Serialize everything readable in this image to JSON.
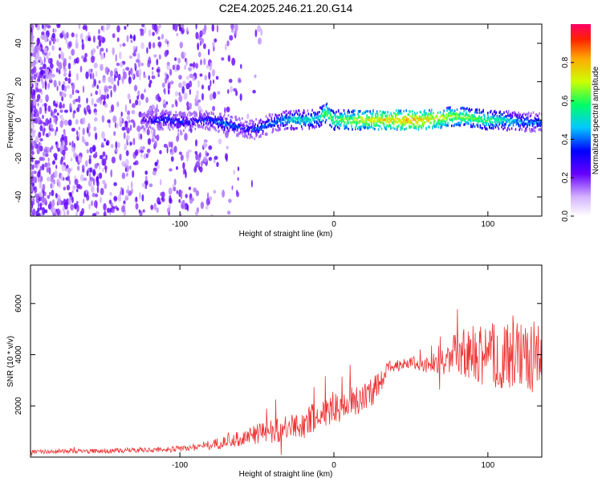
{
  "page_title": "C2E4.2025.246.21.20.G14",
  "colors": {
    "snr_line": "#ee3333",
    "frame": "#000000",
    "spec_dot": "#8a2be2",
    "background": "#ffffff"
  },
  "chart_data": [
    {
      "type": "heatmap",
      "title": "C2E4.2025.246.21.20.G14",
      "xlabel": "Height of straight line (km)",
      "ylabel": "Frequency (Hz)",
      "xlim": [
        -197,
        135
      ],
      "ylim": [
        -50,
        50
      ],
      "xticks": [
        -100,
        0,
        100
      ],
      "xtick_labels": [
        "-100",
        "0",
        "100"
      ],
      "yticks": [
        -40,
        -20,
        0,
        20,
        40
      ],
      "ytick_labels": [
        "-40",
        "-20",
        "0",
        "20",
        "40"
      ],
      "colorbar": {
        "label": "Normalized spectral amplitude",
        "range": [
          0,
          1
        ],
        "ticks": [
          0.0,
          0.2,
          0.4,
          0.6,
          0.8
        ],
        "tick_labels": [
          "0.0",
          "0.2",
          "0.4",
          "0.6",
          "0.8"
        ]
      },
      "signal_track": {
        "description_points_x": [
          -125,
          -110,
          -95,
          -80,
          -70,
          -60,
          -52,
          -45,
          -38,
          -32,
          -25,
          -18,
          -10,
          -5,
          0,
          10,
          20,
          30,
          40,
          50,
          60,
          70,
          80,
          90,
          100,
          110,
          120,
          130
        ],
        "frequency_hz": [
          0,
          0,
          -1,
          0,
          -2,
          -4,
          -5,
          -3,
          -1,
          0,
          0,
          0,
          1,
          4,
          0,
          0,
          0,
          0,
          0,
          0,
          0,
          1,
          2,
          1,
          0,
          0,
          -1,
          -1
        ],
        "peak_amplitude": [
          0.3,
          0.45,
          0.4,
          0.45,
          0.5,
          0.4,
          0.45,
          0.5,
          0.5,
          0.55,
          0.6,
          0.6,
          0.6,
          0.75,
          0.7,
          0.75,
          0.8,
          0.85,
          0.85,
          0.9,
          0.85,
          0.8,
          0.75,
          0.7,
          0.7,
          0.6,
          0.55,
          0.5
        ]
      }
    },
    {
      "type": "line",
      "xlabel": "Height of straight line (km)",
      "ylabel": "SNR (10 * v/v)",
      "xlim": [
        -197,
        135
      ],
      "ylim": [
        0,
        7500
      ],
      "xticks": [
        -100,
        0,
        100
      ],
      "xtick_labels": [
        "-100",
        "0",
        "100"
      ],
      "yticks": [
        2000,
        4000,
        6000
      ],
      "ytick_labels": [
        "2000",
        "4000",
        "6000"
      ],
      "series": [
        {
          "name": "SNR",
          "x": [
            -197,
            -180,
            -160,
            -140,
            -120,
            -100,
            -90,
            -80,
            -70,
            -60,
            -50,
            -40,
            -30,
            -20,
            -10,
            0,
            10,
            20,
            30,
            35,
            40,
            50,
            60,
            70,
            80,
            90,
            100,
            110,
            120,
            130,
            135
          ],
          "y": [
            200,
            220,
            230,
            250,
            280,
            320,
            400,
            480,
            600,
            750,
            900,
            1050,
            1100,
            1300,
            1600,
            1900,
            2100,
            2400,
            2800,
            3500,
            3600,
            3700,
            3600,
            3750,
            4000,
            4000,
            4000,
            3900,
            4000,
            4000,
            4000
          ],
          "noise_amplitude": [
            80,
            80,
            90,
            100,
            100,
            120,
            150,
            200,
            250,
            300,
            400,
            500,
            500,
            600,
            600,
            600,
            600,
            700,
            500,
            250,
            250,
            250,
            300,
            500,
            900,
            1200,
            1300,
            1300,
            1300,
            1400,
            1400
          ]
        }
      ]
    }
  ]
}
